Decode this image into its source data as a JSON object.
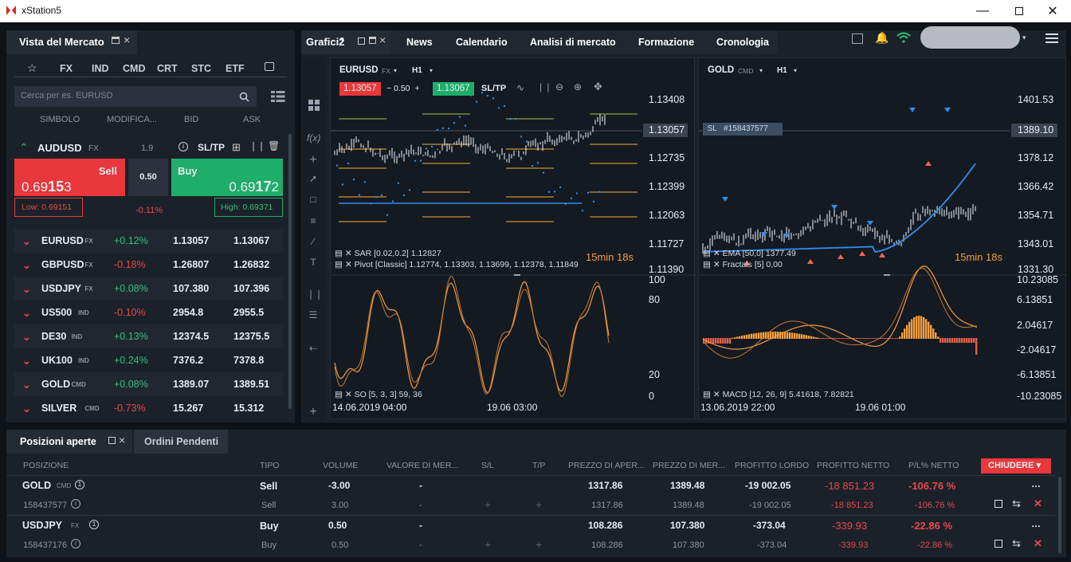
{
  "window": {
    "title": "xStation5"
  },
  "market_watch": {
    "title": "Vista del Mercato",
    "categories": [
      "FX",
      "IND",
      "CMD",
      "CRT",
      "STC",
      "ETF"
    ],
    "search_placeholder": "Cerca per es. EURUSD",
    "columns": [
      "SIMBOLO",
      "MODIFICA...",
      "BID",
      "ASK"
    ],
    "selected": {
      "symbol": "AUDUSD",
      "tag": "FX",
      "spread_info": "1.9",
      "sltp": "SL/TP",
      "sell_label": "Sell",
      "sell_price_pre": "0.69",
      "sell_price_big": "15",
      "sell_price_post": "3",
      "spread": "0.50",
      "buy_label": "Buy",
      "buy_price_pre": "0.69",
      "buy_price_big": "17",
      "buy_price_post": "2",
      "low": "Low: 0.69151",
      "change": "-0.11%",
      "high": "High: 0.69371"
    },
    "rows": [
      {
        "symbol": "EURUSD",
        "tag": "FX",
        "change": "+0.12%",
        "bid": "1.13057",
        "ask": "1.13067",
        "up": true
      },
      {
        "symbol": "GBPUSD",
        "tag": "FX",
        "change": "-0.18%",
        "bid": "1.26807",
        "ask": "1.26832",
        "up": false
      },
      {
        "symbol": "USDJPY",
        "tag": "FX",
        "change": "+0.08%",
        "bid": "107.380",
        "ask": "107.396",
        "up": true
      },
      {
        "symbol": "US500",
        "tag": "IND",
        "change": "-0.10%",
        "bid": "2954.8",
        "ask": "2955.5",
        "up": false
      },
      {
        "symbol": "DE30",
        "tag": "IND",
        "change": "+0.13%",
        "bid": "12374.5",
        "ask": "12375.5",
        "up": true
      },
      {
        "symbol": "UK100",
        "tag": "IND",
        "change": "+0.24%",
        "bid": "7376.2",
        "ask": "7378.8",
        "up": true
      },
      {
        "symbol": "GOLD",
        "tag": "CMD",
        "change": "+0.08%",
        "bid": "1389.07",
        "ask": "1389.51",
        "up": true
      },
      {
        "symbol": "SILVER",
        "tag": "CMD",
        "change": "-0.73%",
        "bid": "15.267",
        "ask": "15.312",
        "up": false
      }
    ]
  },
  "top_tabs": {
    "charts": "Grafici2",
    "items": [
      "News",
      "Calendario",
      "Analisi di mercato",
      "Formazione",
      "Cronologia"
    ]
  },
  "chart_left": {
    "symbol": "EURUSD",
    "tag": "FX",
    "tf": "H1",
    "sell_price": "1.13057",
    "spread": "0.50",
    "buy_price": "1.13067",
    "sltp": "SL/TP",
    "price_labels": [
      "1.13408",
      "1.13057",
      "1.12735",
      "1.12399",
      "1.12063",
      "1.11727",
      "1.11390"
    ],
    "timer": "15min 18s",
    "legend1": "SAR [0.02,0.2] 1.12827",
    "legend2": "Pivot [Classic] 1.12774, 1.13303, 1.13699, 1.12378, 1.11849",
    "osc_labels": [
      "100",
      "80",
      "20",
      "0"
    ],
    "osc_legend": "SO [5, 3, 3] 59, 36",
    "dates": [
      "14.06.2019 04:00",
      "19.06 03:00"
    ]
  },
  "chart_right": {
    "symbol": "GOLD",
    "tag": "CMD",
    "tf": "H1",
    "sl_tag": "SL",
    "position": "#158437577",
    "price_labels": [
      "1401.53",
      "1389.10",
      "1378.12",
      "1366.42",
      "1354.71",
      "1343.01",
      "1331.30"
    ],
    "timer": "15min 18s",
    "legend1": "EMA [50,0] 1377.49",
    "legend2": "Fractals [5] 0,00",
    "osc_labels": [
      "10.23085",
      "6.13851",
      "2.04617",
      "-2.04617",
      "-6.13851",
      "-10.23085"
    ],
    "osc_legend": "MACD [12, 26, 9] 5.41618, 7.82821",
    "dates": [
      "13.06.2019 22:00",
      "19.06 01:00"
    ]
  },
  "bottom": {
    "tab_open": "Posizioni aperte",
    "tab_pending": "Ordini Pendenti",
    "headers": [
      "POSIZIONE",
      "TIPO",
      "VOLUME",
      "VALORE DI MER...",
      "S/L",
      "T/P",
      "PREZZO DI APER...",
      "PREZZO DI MER...",
      "PROFITTO LORDO",
      "PROFITTO NETTO",
      "P/L% NETTO"
    ],
    "close_btn": "CHIUDERE",
    "positions": [
      {
        "symbol": "GOLD",
        "tag": "CMD",
        "count": "1",
        "type": "Sell",
        "volume": "-3.00",
        "value": "-",
        "open": "1317.86",
        "market": "1389.48",
        "gross": "-19 002.05",
        "net": "-18 851.23",
        "pl": "-106.76 %",
        "id": "158437577",
        "sub_type": "Sell",
        "sub_volume": "3.00",
        "sub_value": "-",
        "sub_open": "1317.86",
        "sub_market": "1389.48",
        "sub_gross": "-19 002.05",
        "sub_net": "-18 851.23",
        "sub_pl": "-106.76 %"
      },
      {
        "symbol": "USDJPY",
        "tag": "FX",
        "count": "1",
        "type": "Buy",
        "volume": "0.50",
        "value": "-",
        "open": "108.286",
        "market": "107.380",
        "gross": "-373.04",
        "net": "-339.93",
        "pl": "-22.86 %",
        "id": "158437176",
        "sub_type": "Buy",
        "sub_volume": "0.50",
        "sub_value": "-",
        "sub_open": "108.286",
        "sub_market": "107.380",
        "sub_gross": "-373.04",
        "sub_net": "-339.93",
        "sub_pl": "-22.86 %"
      }
    ]
  },
  "colors": {
    "sell": "#e8383b",
    "buy": "#1fae6a",
    "accent": "#f39c3d",
    "blue": "#2f8df0"
  }
}
